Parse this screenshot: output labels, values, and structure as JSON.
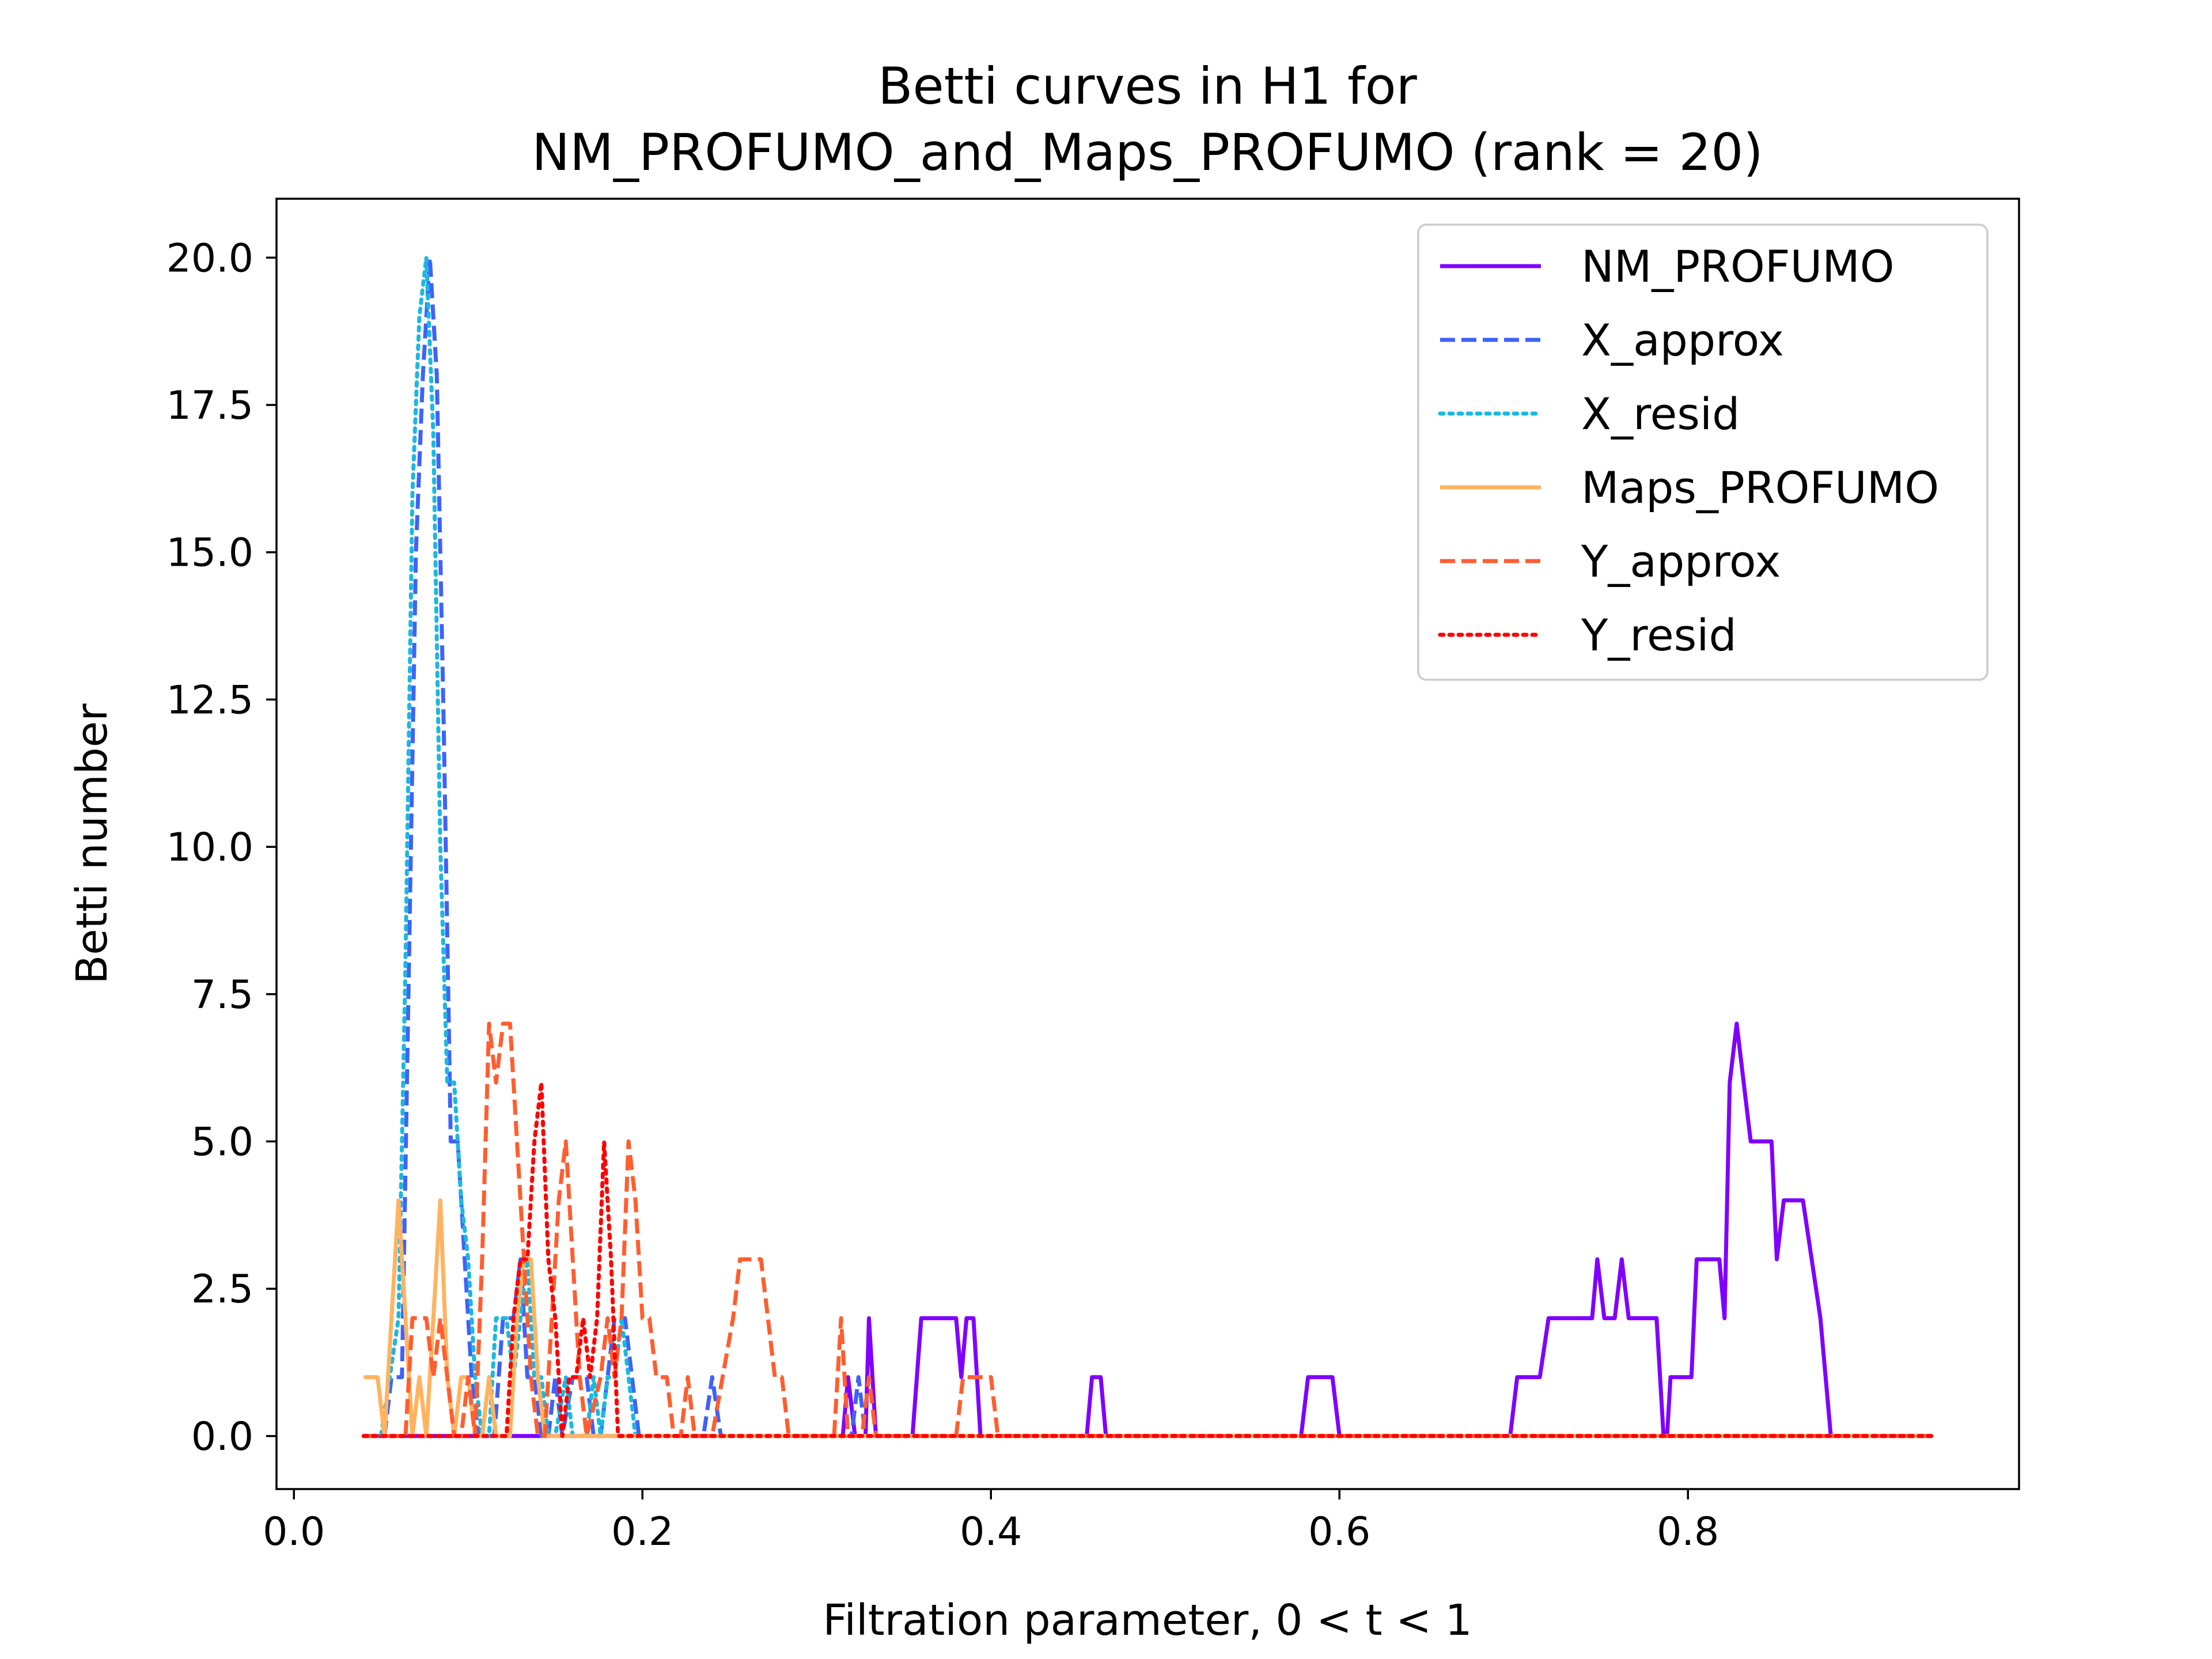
{
  "chart_data": {
    "type": "line",
    "title_lines": [
      "Betti curves in H1 for",
      "NM_PROFUMO_and_Maps_PROFUMO (rank = 20)"
    ],
    "xlabel": "Filtration parameter, 0 < t < 1",
    "ylabel": "Betti number",
    "xlim": [
      -0.01,
      0.99
    ],
    "ylim": [
      -0.9,
      21
    ],
    "xticks": [
      0.0,
      0.2,
      0.4,
      0.6,
      0.8
    ],
    "xtick_labels": [
      "0.0",
      "0.2",
      "0.4",
      "0.6",
      "0.8"
    ],
    "yticks": [
      0.0,
      2.5,
      5.0,
      7.5,
      10.0,
      12.5,
      15.0,
      17.5,
      20.0
    ],
    "ytick_labels": [
      "0.0",
      "2.5",
      "5.0",
      "7.5",
      "10.0",
      "12.5",
      "15.0",
      "17.5",
      "20.0"
    ],
    "grid": false,
    "legend_position": "top-right",
    "series": [
      {
        "name": "NM_PROFUMO",
        "color": "#8000ff",
        "style": "solid",
        "points": [
          [
            0.04,
            0
          ],
          [
            0.315,
            0
          ],
          [
            0.318,
            1
          ],
          [
            0.322,
            0
          ],
          [
            0.328,
            0
          ],
          [
            0.33,
            2
          ],
          [
            0.334,
            0
          ],
          [
            0.355,
            0
          ],
          [
            0.36,
            2
          ],
          [
            0.38,
            2
          ],
          [
            0.383,
            1
          ],
          [
            0.386,
            2
          ],
          [
            0.39,
            2
          ],
          [
            0.394,
            0
          ],
          [
            0.455,
            0
          ],
          [
            0.458,
            1
          ],
          [
            0.463,
            1
          ],
          [
            0.466,
            0
          ],
          [
            0.578,
            0
          ],
          [
            0.582,
            1
          ],
          [
            0.596,
            1
          ],
          [
            0.6,
            0
          ],
          [
            0.698,
            0
          ],
          [
            0.702,
            1
          ],
          [
            0.715,
            1
          ],
          [
            0.72,
            2
          ],
          [
            0.745,
            2
          ],
          [
            0.748,
            3
          ],
          [
            0.752,
            2
          ],
          [
            0.758,
            2
          ],
          [
            0.762,
            3
          ],
          [
            0.766,
            2
          ],
          [
            0.782,
            2
          ],
          [
            0.786,
            0
          ],
          [
            0.788,
            0
          ],
          [
            0.79,
            1
          ],
          [
            0.802,
            1
          ],
          [
            0.805,
            3
          ],
          [
            0.818,
            3
          ],
          [
            0.821,
            2
          ],
          [
            0.824,
            6
          ],
          [
            0.828,
            7
          ],
          [
            0.832,
            6
          ],
          [
            0.836,
            5
          ],
          [
            0.848,
            5
          ],
          [
            0.851,
            3
          ],
          [
            0.855,
            4
          ],
          [
            0.866,
            4
          ],
          [
            0.876,
            2
          ],
          [
            0.882,
            0
          ],
          [
            0.94,
            0
          ]
        ]
      },
      {
        "name": "X_approx",
        "color": "#4062fa",
        "style": "dashed",
        "points": [
          [
            0.04,
            0
          ],
          [
            0.052,
            0
          ],
          [
            0.056,
            1
          ],
          [
            0.062,
            1
          ],
          [
            0.066,
            8
          ],
          [
            0.07,
            15
          ],
          [
            0.074,
            18
          ],
          [
            0.078,
            20
          ],
          [
            0.082,
            18
          ],
          [
            0.086,
            12
          ],
          [
            0.09,
            5
          ],
          [
            0.094,
            5
          ],
          [
            0.098,
            3
          ],
          [
            0.102,
            1
          ],
          [
            0.106,
            0
          ],
          [
            0.115,
            0
          ],
          [
            0.12,
            2
          ],
          [
            0.126,
            2
          ],
          [
            0.13,
            3
          ],
          [
            0.134,
            1
          ],
          [
            0.138,
            1
          ],
          [
            0.142,
            0
          ],
          [
            0.146,
            0
          ],
          [
            0.15,
            1
          ],
          [
            0.154,
            0
          ],
          [
            0.16,
            1
          ],
          [
            0.168,
            1
          ],
          [
            0.172,
            0
          ],
          [
            0.176,
            0
          ],
          [
            0.18,
            1
          ],
          [
            0.184,
            2
          ],
          [
            0.19,
            2
          ],
          [
            0.194,
            1
          ],
          [
            0.198,
            0
          ],
          [
            0.235,
            0
          ],
          [
            0.24,
            1
          ],
          [
            0.245,
            0
          ],
          [
            0.32,
            0
          ],
          [
            0.324,
            1
          ],
          [
            0.328,
            0
          ],
          [
            0.94,
            0
          ]
        ]
      },
      {
        "name": "X_resid",
        "color": "#1bb8e0",
        "style": "dotted",
        "points": [
          [
            0.04,
            0
          ],
          [
            0.05,
            0
          ],
          [
            0.055,
            1
          ],
          [
            0.06,
            2
          ],
          [
            0.064,
            8
          ],
          [
            0.068,
            16
          ],
          [
            0.072,
            19
          ],
          [
            0.076,
            20
          ],
          [
            0.08,
            17
          ],
          [
            0.084,
            10
          ],
          [
            0.088,
            6
          ],
          [
            0.092,
            6
          ],
          [
            0.096,
            4
          ],
          [
            0.1,
            3
          ],
          [
            0.104,
            1
          ],
          [
            0.108,
            0
          ],
          [
            0.112,
            0
          ],
          [
            0.116,
            2
          ],
          [
            0.122,
            2
          ],
          [
            0.126,
            1
          ],
          [
            0.13,
            2
          ],
          [
            0.134,
            3
          ],
          [
            0.138,
            1
          ],
          [
            0.142,
            1
          ],
          [
            0.146,
            0
          ],
          [
            0.15,
            0
          ],
          [
            0.156,
            1
          ],
          [
            0.16,
            0
          ],
          [
            0.168,
            0
          ],
          [
            0.172,
            1
          ],
          [
            0.176,
            0
          ],
          [
            0.18,
            1
          ],
          [
            0.184,
            1
          ],
          [
            0.188,
            2
          ],
          [
            0.192,
            1
          ],
          [
            0.196,
            0
          ],
          [
            0.94,
            0
          ]
        ]
      },
      {
        "name": "Maps_PROFUMO",
        "color": "#ffb360",
        "style": "solid",
        "points": [
          [
            0.04,
            1
          ],
          [
            0.048,
            1
          ],
          [
            0.052,
            0
          ],
          [
            0.056,
            2
          ],
          [
            0.06,
            4
          ],
          [
            0.064,
            2
          ],
          [
            0.068,
            0
          ],
          [
            0.072,
            1
          ],
          [
            0.076,
            0
          ],
          [
            0.08,
            2
          ],
          [
            0.084,
            4
          ],
          [
            0.088,
            1
          ],
          [
            0.092,
            0
          ],
          [
            0.096,
            1
          ],
          [
            0.1,
            1
          ],
          [
            0.104,
            0
          ],
          [
            0.108,
            0
          ],
          [
            0.112,
            1
          ],
          [
            0.116,
            0
          ],
          [
            0.124,
            0
          ],
          [
            0.128,
            2
          ],
          [
            0.132,
            3
          ],
          [
            0.136,
            3
          ],
          [
            0.14,
            1
          ],
          [
            0.144,
            0
          ],
          [
            0.15,
            0
          ],
          [
            0.155,
            0
          ],
          [
            0.94,
            0
          ]
        ]
      },
      {
        "name": "Y_approx",
        "color": "#ff5e30",
        "style": "dashed",
        "points": [
          [
            0.04,
            0
          ],
          [
            0.064,
            0
          ],
          [
            0.068,
            2
          ],
          [
            0.076,
            2
          ],
          [
            0.08,
            1
          ],
          [
            0.084,
            2
          ],
          [
            0.088,
            1
          ],
          [
            0.092,
            0
          ],
          [
            0.096,
            0
          ],
          [
            0.1,
            1
          ],
          [
            0.104,
            0
          ],
          [
            0.108,
            3
          ],
          [
            0.112,
            7
          ],
          [
            0.116,
            6
          ],
          [
            0.12,
            7
          ],
          [
            0.124,
            7
          ],
          [
            0.128,
            5
          ],
          [
            0.132,
            3
          ],
          [
            0.136,
            1
          ],
          [
            0.14,
            0
          ],
          [
            0.144,
            0
          ],
          [
            0.148,
            2
          ],
          [
            0.152,
            4
          ],
          [
            0.156,
            5
          ],
          [
            0.16,
            3
          ],
          [
            0.164,
            1
          ],
          [
            0.168,
            0
          ],
          [
            0.176,
            1
          ],
          [
            0.18,
            2
          ],
          [
            0.184,
            1
          ],
          [
            0.188,
            2
          ],
          [
            0.192,
            5
          ],
          [
            0.196,
            4
          ],
          [
            0.2,
            2
          ],
          [
            0.204,
            2
          ],
          [
            0.208,
            1
          ],
          [
            0.214,
            1
          ],
          [
            0.218,
            0
          ],
          [
            0.222,
            0
          ],
          [
            0.226,
            1
          ],
          [
            0.23,
            0
          ],
          [
            0.24,
            0
          ],
          [
            0.246,
            1
          ],
          [
            0.252,
            2
          ],
          [
            0.256,
            3
          ],
          [
            0.268,
            3
          ],
          [
            0.272,
            2
          ],
          [
            0.276,
            1
          ],
          [
            0.28,
            1
          ],
          [
            0.284,
            0
          ],
          [
            0.29,
            0
          ],
          [
            0.294,
            0
          ],
          [
            0.3,
            0
          ],
          [
            0.31,
            0
          ],
          [
            0.314,
            2
          ],
          [
            0.318,
            0
          ],
          [
            0.326,
            0
          ],
          [
            0.33,
            1
          ],
          [
            0.334,
            0
          ],
          [
            0.38,
            0
          ],
          [
            0.384,
            1
          ],
          [
            0.4,
            1
          ],
          [
            0.404,
            0
          ],
          [
            0.94,
            0
          ]
        ]
      },
      {
        "name": "Y_resid",
        "color": "#ff0000",
        "style": "dotted",
        "points": [
          [
            0.04,
            0
          ],
          [
            0.122,
            0
          ],
          [
            0.126,
            2
          ],
          [
            0.13,
            3
          ],
          [
            0.134,
            3
          ],
          [
            0.138,
            5
          ],
          [
            0.142,
            6
          ],
          [
            0.146,
            3
          ],
          [
            0.15,
            2
          ],
          [
            0.154,
            0
          ],
          [
            0.158,
            1
          ],
          [
            0.162,
            1
          ],
          [
            0.166,
            2
          ],
          [
            0.17,
            1
          ],
          [
            0.174,
            2
          ],
          [
            0.178,
            5
          ],
          [
            0.182,
            3
          ],
          [
            0.186,
            0
          ],
          [
            0.94,
            0
          ]
        ]
      }
    ]
  }
}
